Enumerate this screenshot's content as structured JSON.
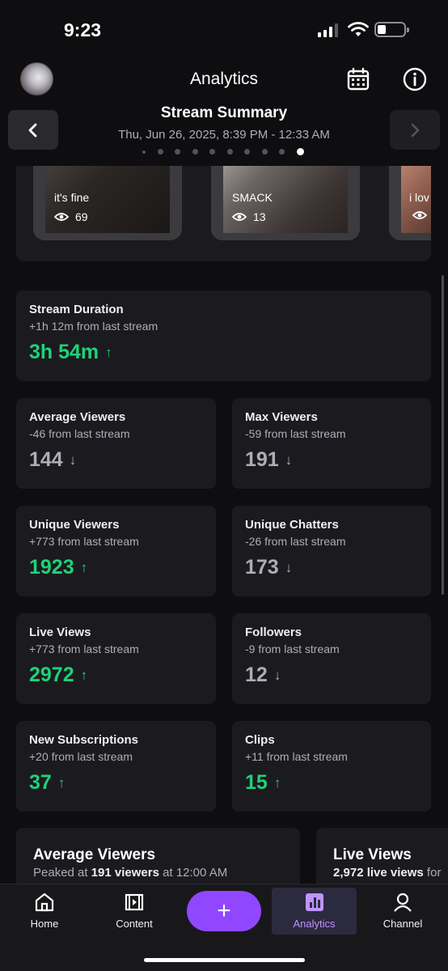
{
  "status": {
    "time": "9:23"
  },
  "header": {
    "title": "Analytics",
    "summary_title": "Stream Summary",
    "summary_date": "Thu, Jun 26, 2025, 8:39 PM - 12:33 AM",
    "page_dots_total": 10,
    "page_dots_active": 10
  },
  "clips": [
    {
      "title": "it's fine",
      "views": "69"
    },
    {
      "title": "SMACK",
      "views": "13"
    },
    {
      "title": "i lov",
      "views": ""
    }
  ],
  "stats": {
    "stream_duration": {
      "label": "Stream Duration",
      "sub": "+1h 12m from last stream",
      "value": "3h 54m",
      "trend": "up"
    },
    "average_viewers": {
      "label": "Average Viewers",
      "sub": "-46 from last stream",
      "value": "144",
      "trend": "down"
    },
    "max_viewers": {
      "label": "Max Viewers",
      "sub": "-59 from last stream",
      "value": "191",
      "trend": "down"
    },
    "unique_viewers": {
      "label": "Unique Viewers",
      "sub": "+773 from last stream",
      "value": "1923",
      "trend": "up"
    },
    "unique_chatters": {
      "label": "Unique Chatters",
      "sub": "-26 from last stream",
      "value": "173",
      "trend": "down"
    },
    "live_views": {
      "label": "Live Views",
      "sub": "+773 from last stream",
      "value": "2972",
      "trend": "up"
    },
    "followers": {
      "label": "Followers",
      "sub": "-9 from last stream",
      "value": "12",
      "trend": "down"
    },
    "new_subscriptions": {
      "label": "New Subscriptions",
      "sub": "+20 from last stream",
      "value": "37",
      "trend": "up"
    },
    "clips_stat": {
      "label": "Clips",
      "sub": "+11 from last stream",
      "value": "15",
      "trend": "up"
    }
  },
  "charts": {
    "avg_viewers": {
      "title": "Average Viewers",
      "sub_pre": "Peaked at ",
      "sub_bold": "191 viewers",
      "sub_post": " at 12:00 AM"
    },
    "live_views": {
      "title": "Live Views",
      "sub_bold": "2,972 live views",
      "sub_post": " for"
    }
  },
  "tabs": {
    "home": "Home",
    "content": "Content",
    "add": "+",
    "analytics": "Analytics",
    "channel": "Channel"
  },
  "colors": {
    "up": "#1fd17a",
    "down": "#adadb8",
    "accent": "#9147ff",
    "active_tab_text": "#bf94ff"
  }
}
